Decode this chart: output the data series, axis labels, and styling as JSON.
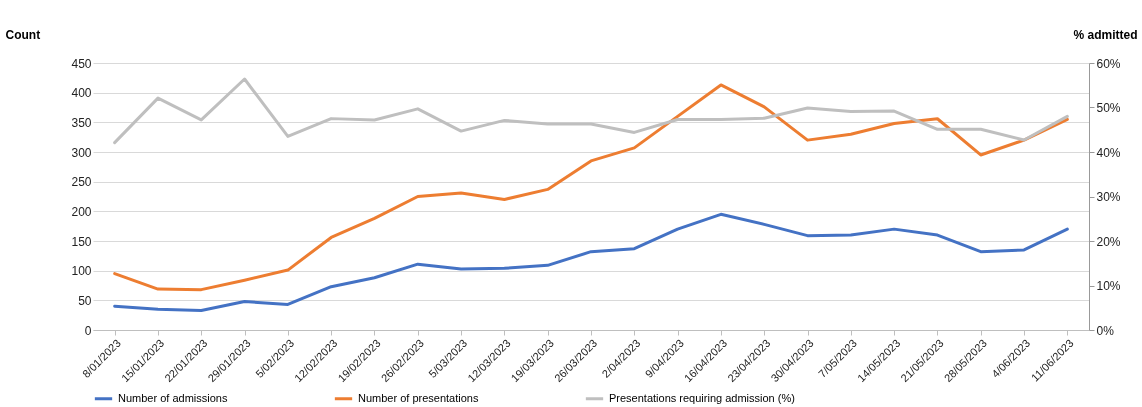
{
  "chart_data": {
    "type": "line",
    "ylabel": "Count",
    "y2label": "% admitted",
    "categories": [
      "8/01/2023",
      "15/01/2023",
      "22/01/2023",
      "29/01/2023",
      "5/02/2023",
      "12/02/2023",
      "19/02/2023",
      "26/02/2023",
      "5/03/2023",
      "12/03/2023",
      "19/03/2023",
      "26/03/2023",
      "2/04/2023",
      "9/04/2023",
      "16/04/2023",
      "23/04/2023",
      "30/04/2023",
      "7/05/2023",
      "14/05/2023",
      "21/05/2023",
      "28/05/2023",
      "4/06/2023",
      "11/06/2023"
    ],
    "series": [
      {
        "name": "Number of admissions",
        "color": "#4472c4",
        "values": [
          40,
          35,
          33,
          48,
          43,
          73,
          88,
          111,
          103,
          104,
          109,
          132,
          137,
          170,
          195,
          178,
          159,
          160,
          170,
          160,
          132,
          135,
          170
        ]
      },
      {
        "name": "Number of presentations",
        "color": "#ed7d31",
        "values": [
          95,
          69,
          68,
          84,
          101,
          156,
          188,
          225,
          231,
          220,
          237,
          285,
          307,
          360,
          413,
          376,
          320,
          330,
          348,
          356,
          295,
          320,
          355
        ]
      },
      {
        "name": "Presentations requiring admission (%)",
        "color": "#bfbfbf",
        "axis": "y2",
        "values": [
          42.1,
          52.1,
          47.2,
          56.4,
          43.5,
          47.5,
          47.2,
          49.7,
          44.7,
          47.1,
          46.3,
          46.3,
          44.4,
          47.3,
          47.3,
          47.6,
          49.9,
          49.1,
          49.2,
          45.1,
          45.1,
          42.7,
          48.0
        ]
      }
    ],
    "ylim": [
      0,
      450
    ],
    "yticks": [
      0,
      50,
      100,
      150,
      200,
      250,
      300,
      350,
      400,
      450
    ],
    "y2lim": [
      0,
      60
    ],
    "y2ticks": [
      {
        "value": 0,
        "label": "0%"
      },
      {
        "value": 10,
        "label": "10%"
      },
      {
        "value": 20,
        "label": "20%"
      },
      {
        "value": 30,
        "label": "30%"
      },
      {
        "value": 40,
        "label": "40%"
      },
      {
        "value": 50,
        "label": "50%"
      },
      {
        "value": 60,
        "label": "60%"
      }
    ],
    "grid": "y",
    "legend": "bottom"
  }
}
